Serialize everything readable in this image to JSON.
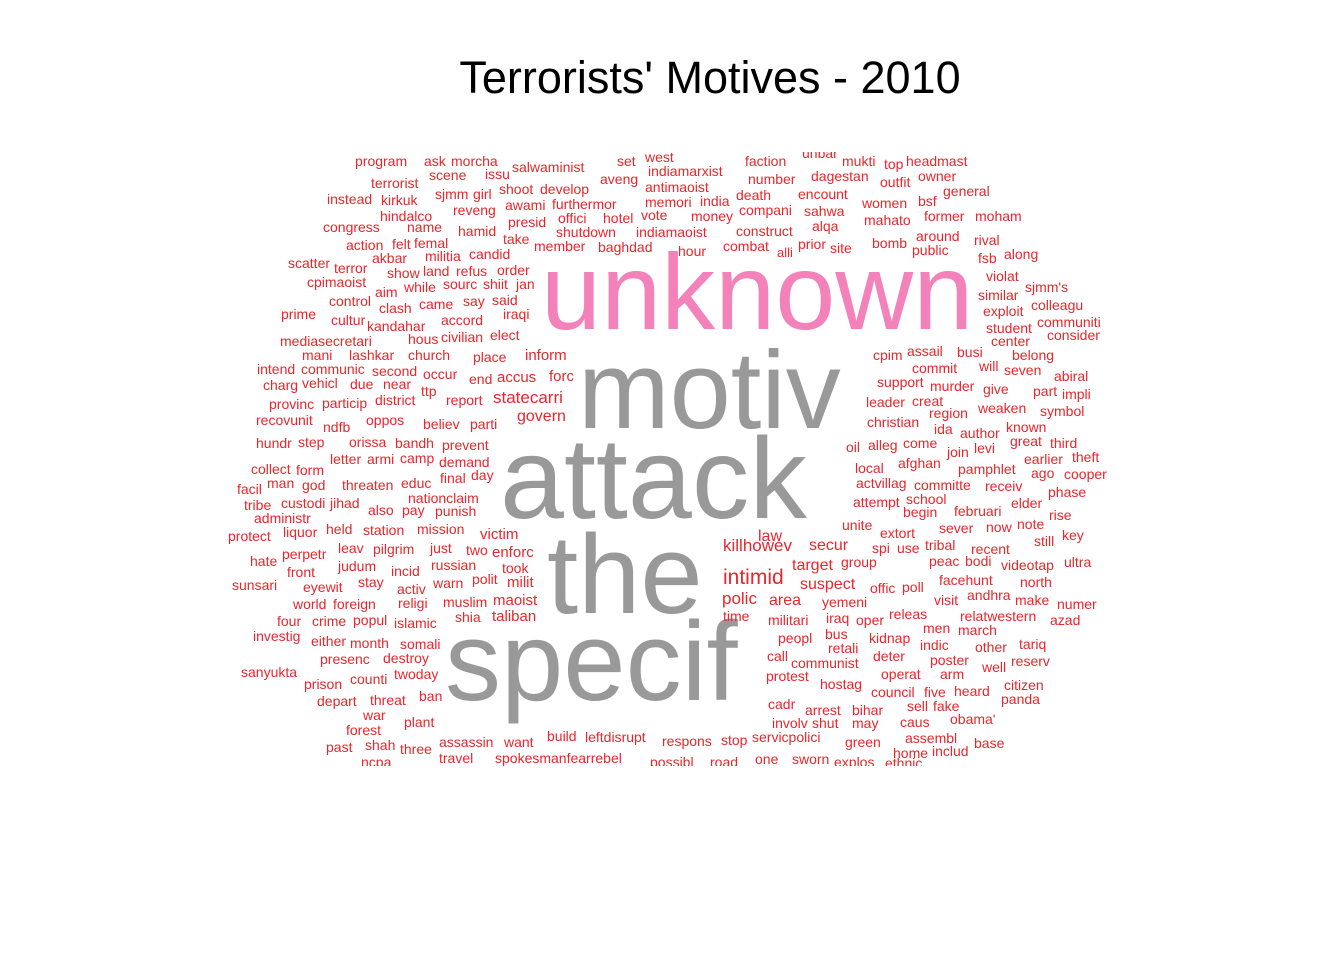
{
  "title": "Terrorists' Motives - 2010",
  "colors": {
    "small": "#e8262c",
    "gray": "#999999",
    "pink": "#f282b9"
  },
  "big_words": [
    "unknown",
    "motiv",
    "attack",
    "the",
    "specif"
  ],
  "words": [
    "program",
    "ask",
    "morcha",
    "issu",
    "set",
    "west",
    "faction",
    "unbar",
    "mukti",
    "top",
    "headmast",
    "terrorist",
    "scene",
    "salwaminist",
    "aveng",
    "indiamarxist",
    "number",
    "dagestan",
    "outfit",
    "owner",
    "instead",
    "kirkuk",
    "sjmm",
    "girl",
    "shoot",
    "develop",
    "antimaoist",
    "death",
    "encount",
    "bsf",
    "general",
    "hindalco",
    "reveng",
    "awami",
    "furthermor",
    "memori",
    "india",
    "compani",
    "sahwa",
    "women",
    "mahato",
    "former",
    "moham",
    "congress",
    "name",
    "presid",
    "offici",
    "hotel",
    "vote",
    "money",
    "construct",
    "alqa",
    "rival",
    "action",
    "felt",
    "femal",
    "hamid",
    "take",
    "shutdown",
    "indiamaoist",
    "combat",
    "prior",
    "bomb",
    "around",
    "along",
    "scatter",
    "terror",
    "akbar",
    "militia",
    "candid",
    "member",
    "baghdad",
    "hour",
    "alli",
    "site",
    "public",
    "fsb",
    "cpimaoist",
    "show",
    "land",
    "refus",
    "order",
    "violat",
    "aim",
    "while",
    "sourc",
    "shiit",
    "jan",
    "similar",
    "sjmm's",
    "control",
    "clash",
    "came",
    "say",
    "said",
    "exploit",
    "colleagu",
    "prime",
    "cultur",
    "accord",
    "iraqi",
    "elect",
    "student",
    "communiti",
    "mediasecretari",
    "kandahar",
    "hous",
    "civilian",
    "center",
    "consider",
    "mani",
    "lashkar",
    "church",
    "place",
    "inform",
    "cpim",
    "assail",
    "busi",
    "belong",
    "intend",
    "communic",
    "second",
    "occur",
    "end",
    "accus",
    "forc",
    "commit",
    "will",
    "seven",
    "charg",
    "vehicl",
    "due",
    "near",
    "statecarri",
    "support",
    "murder",
    "give",
    "abiral",
    "provinc",
    "particip",
    "district",
    "ttp",
    "report",
    "leader",
    "creat",
    "part",
    "impli",
    "recovunit",
    "ndfb",
    "oppos",
    "believ",
    "parti",
    "govern",
    "christian",
    "region",
    "weaken",
    "symbol",
    "hundr",
    "step",
    "orissa",
    "bandh",
    "prevent",
    "ida",
    "author",
    "known",
    "great",
    "third",
    "letter",
    "armi",
    "camp",
    "oil",
    "alleg",
    "come",
    "join",
    "levi",
    "earlier",
    "theft",
    "collect",
    "form",
    "demand",
    "day",
    "local",
    "afghan",
    "pamphlet",
    "ago",
    "cooper",
    "facil",
    "man",
    "god",
    "threaten",
    "educ",
    "final",
    "actvillag",
    "committe",
    "receiv",
    "phase",
    "tribe",
    "custodi",
    "jihad",
    "nationclaim",
    "attempt",
    "school",
    "elder",
    "administr",
    "also",
    "pay",
    "punish",
    "begin",
    "februari",
    "rise",
    "protect",
    "liquor",
    "held",
    "station",
    "mission",
    "victim",
    "unite",
    "extort",
    "sever",
    "now",
    "note",
    "key",
    "hate",
    "perpetr",
    "leav",
    "pilgrim",
    "just",
    "two",
    "enforc",
    "killhowev",
    "secur",
    "spi",
    "use",
    "tribal",
    "recent",
    "still",
    "front",
    "judum",
    "russian",
    "took",
    "target",
    "group",
    "peac",
    "bodi",
    "videotap",
    "ultra",
    "sunsari",
    "eyewit",
    "stay",
    "incid",
    "warn",
    "polit",
    "milit",
    "intimid",
    "suspect",
    "offic",
    "poll",
    "facehunt",
    "north",
    "world",
    "foreign",
    "activ",
    "religi",
    "muslim",
    "maoist",
    "area",
    "yemeni",
    "visit",
    "andhra",
    "make",
    "numer",
    "four",
    "crime",
    "popul",
    "islamic",
    "shia",
    "taliban",
    "polic",
    "time",
    "militari",
    "iraq",
    "oper",
    "releas",
    "relatwestern",
    "azad",
    "investig",
    "either",
    "month",
    "somali",
    "bus",
    "kidnap",
    "men",
    "march",
    "presenc",
    "destroy",
    "peopl",
    "retali",
    "indic",
    "other",
    "tariq",
    "sanyukta",
    "counti",
    "twoday",
    "call",
    "communist",
    "deter",
    "poster",
    "well",
    "reserv",
    "prison",
    "depart",
    "threat",
    "ban",
    "protest",
    "hostag",
    "operat",
    "arm",
    "citizen",
    "cadr",
    "council",
    "five",
    "heard",
    "panda",
    "war",
    "arrest",
    "bihar",
    "sell",
    "fake",
    "forest",
    "plant",
    "involv",
    "shut",
    "may",
    "caus",
    "obama'",
    "past",
    "shah",
    "three",
    "assassin",
    "want",
    "build",
    "leftdisrupt",
    "respons",
    "stop",
    "servicpolici",
    "green",
    "assembl",
    "base",
    "ncpa",
    "travel",
    "spokesmanfearrebel",
    "possibl",
    "road",
    "one",
    "sworn",
    "explos",
    "ethnic",
    "home",
    "includ",
    "law"
  ]
}
